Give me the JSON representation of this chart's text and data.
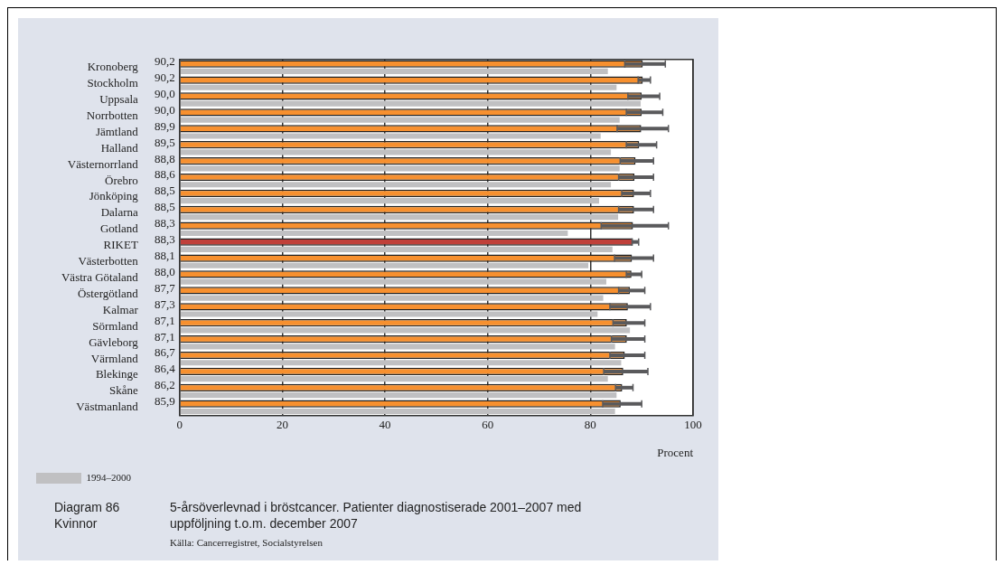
{
  "chart_data": {
    "type": "bar",
    "orientation": "horizontal",
    "title": "5-årsöverlevnad i bröstcancer. Patienter diagnostiserade 2001–2007 med uppföljning t.o.m. december 2007",
    "xlabel": "Procent",
    "annotations": [
      "Diagram 86",
      "Kvinnor",
      "Källa: Cancerregistret, Socialstyrelsen"
    ],
    "categories": [
      "Kronoberg",
      "Stockholm",
      "Uppsala",
      "Norrbotten",
      "Jämtland",
      "Halland",
      "Västernorrland",
      "Örebro",
      "Jönköping",
      "Dalarna",
      "Gotland",
      "RIKET",
      "Västerbotten",
      "Västra Götaland",
      "Östergötland",
      "Kalmar",
      "Sörmland",
      "Gävleborg",
      "Värmland",
      "Blekinge",
      "Skåne",
      "Västmanland"
    ],
    "series": [
      {
        "colors": [
          "#f7902f",
          "#f7902f",
          "#f7902f",
          "#f7902f",
          "#f7902f",
          "#f7902f",
          "#f7902f",
          "#f7902f",
          "#f7902f",
          "#f7902f",
          "#f7902f",
          "#c0403a",
          "#f7902f",
          "#f7902f",
          "#f7902f",
          "#f7902f",
          "#f7902f",
          "#f7902f",
          "#f7902f",
          "#f7902f",
          "#f7902f",
          "#f7902f"
        ],
        "values": [
          90.2,
          90.2,
          90.0,
          90.0,
          89.9,
          89.5,
          88.8,
          88.6,
          88.5,
          88.5,
          88.3,
          88.3,
          88.1,
          88.0,
          87.7,
          87.3,
          87.1,
          87.1,
          86.7,
          86.4,
          86.2,
          85.9
        ],
        "value_labels": [
          "90,2",
          "90,2",
          "90,0",
          "90,0",
          "89,9",
          "89,5",
          "88,8",
          "88,6",
          "88,5",
          "88,5",
          "88,3",
          "88,3",
          "88,1",
          "88,0",
          "87,7",
          "87,3",
          "87,1",
          "87,1",
          "86,7",
          "86,4",
          "86,2",
          "85,9"
        ],
        "errors": [
          [
            86.7,
            94.6
          ],
          [
            89.3,
            91.7
          ],
          [
            87.3,
            93.5
          ],
          [
            87.0,
            94.1
          ],
          [
            85.2,
            95.2
          ],
          [
            87.0,
            92.9
          ],
          [
            85.8,
            92.3
          ],
          [
            85.5,
            92.3
          ],
          [
            86.1,
            91.7
          ],
          [
            85.5,
            92.3
          ],
          [
            82.1,
            95.2
          ],
          [
            88.1,
            89.4
          ],
          [
            84.7,
            92.3
          ],
          [
            87.0,
            90.0
          ],
          [
            85.5,
            90.6
          ],
          [
            83.8,
            91.7
          ],
          [
            84.4,
            90.6
          ],
          [
            84.1,
            90.6
          ],
          [
            83.8,
            90.6
          ],
          [
            82.6,
            91.2
          ],
          [
            84.9,
            88.3
          ],
          [
            82.4,
            90.0
          ]
        ]
      },
      {
        "name": "1994–2000",
        "color": "#c0c0c2",
        "values": [
          83.4,
          85.1,
          89.8,
          85.7,
          82.0,
          84.0,
          85.7,
          84.0,
          81.7,
          85.4,
          75.6,
          84.3,
          79.6,
          83.1,
          82.5,
          81.4,
          87.7,
          84.8,
          86.0,
          83.4,
          85.1,
          84.8
        ]
      }
    ],
    "xlim": [
      0,
      100
    ],
    "xticks": [
      0,
      20,
      40,
      60,
      80,
      100
    ],
    "grid": "x",
    "legend": "bottom left"
  }
}
